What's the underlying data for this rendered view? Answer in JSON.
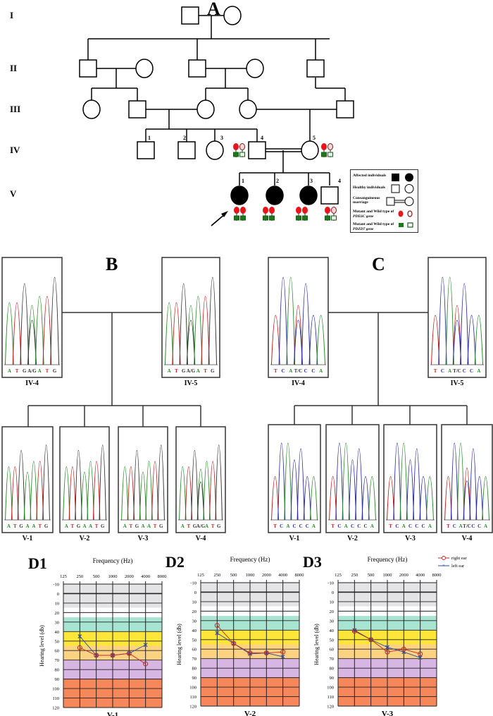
{
  "panel_a": {
    "label": "A",
    "generations": [
      "I",
      "II",
      "III",
      "IV",
      "V"
    ],
    "numbers_iv": [
      "1",
      "2",
      "3",
      "4",
      "5"
    ],
    "numbers_v": [
      "1",
      "2",
      "3",
      "4"
    ],
    "legend": {
      "affected": "Affected individuals",
      "healthy": "Healthy individuals",
      "consanguineous": "Consanguineous marriage",
      "pde6c": "Mutant and Wild type of",
      "pde6c_gene": "PDE6C gene",
      "pdzd7": "Mutant and Wild type of",
      "pdzd7_gene": "PDZD7 gene"
    },
    "colors": {
      "mutant_pde6c": "#e8161a",
      "mutant_pdzd7": "#1a7a1a"
    }
  },
  "panel_b": {
    "label": "B",
    "parents": [
      {
        "id": "IV-4",
        "bases": [
          "A",
          "T",
          "G",
          "A/G",
          "A",
          "T",
          "G"
        ]
      },
      {
        "id": "IV-5",
        "bases": [
          "A",
          "T",
          "G",
          "A/G",
          "A",
          "T",
          "G"
        ]
      }
    ],
    "children": [
      {
        "id": "V-1",
        "bases": [
          "A",
          "T",
          "G",
          "A",
          "A",
          "T",
          "G"
        ]
      },
      {
        "id": "V-2",
        "bases": [
          "A",
          "T",
          "G",
          "A",
          "A",
          "T",
          "G"
        ]
      },
      {
        "id": "V-3",
        "bases": [
          "A",
          "T",
          "G",
          "A",
          "A",
          "T",
          "G"
        ]
      },
      {
        "id": "V-4",
        "bases": [
          "A",
          "T",
          "G",
          "A/G",
          "A",
          "T",
          "G"
        ]
      }
    ]
  },
  "panel_c": {
    "label": "C",
    "parents": [
      {
        "id": "IV-4",
        "bases": [
          "T",
          "C",
          "A",
          "T/C",
          "C",
          "C",
          "A"
        ]
      },
      {
        "id": "IV-5",
        "bases": [
          "T",
          "C",
          "A",
          "T/C",
          "C",
          "C",
          "A"
        ]
      }
    ],
    "children": [
      {
        "id": "V-1",
        "bases": [
          "T",
          "C",
          "A",
          "C",
          "C",
          "C",
          "A"
        ]
      },
      {
        "id": "V-2",
        "bases": [
          "T",
          "C",
          "A",
          "C",
          "C",
          "C",
          "A"
        ]
      },
      {
        "id": "V-3",
        "bases": [
          "T",
          "C",
          "A",
          "C",
          "C",
          "C",
          "A"
        ]
      },
      {
        "id": "V-4",
        "bases": [
          "T",
          "C",
          "A",
          "T/C",
          "C",
          "C",
          "A"
        ]
      }
    ]
  },
  "audiograms": {
    "xlabel": "Frequency (Hz)",
    "ylabel": "Hearing level (db)",
    "frequencies": [
      "125",
      "250",
      "500",
      "1000",
      "2000",
      "4000",
      "8000"
    ],
    "levels": [
      "-10",
      "0",
      "10",
      "20",
      "30",
      "40",
      "50",
      "60",
      "70",
      "80",
      "90",
      "100",
      "110",
      "120"
    ],
    "legend": {
      "right": "right ear",
      "left": "left ear"
    },
    "charts": [
      {
        "label": "D1",
        "subject": "V-1",
        "right": [
          57,
          65,
          65,
          63,
          74
        ],
        "left": [
          45,
          65,
          65,
          63,
          54
        ]
      },
      {
        "label": "D2",
        "subject": "V-2",
        "right": [
          35,
          54,
          64,
          64,
          63
        ],
        "left": [
          43,
          54,
          65,
          64,
          68
        ]
      },
      {
        "label": "D3",
        "subject": "V-3",
        "right": [
          41,
          50,
          63,
          60,
          65
        ],
        "left": [
          40,
          50,
          58,
          63,
          69
        ]
      }
    ],
    "colors": {
      "right": "#c0282a",
      "left": "#2a4fa0"
    }
  }
}
